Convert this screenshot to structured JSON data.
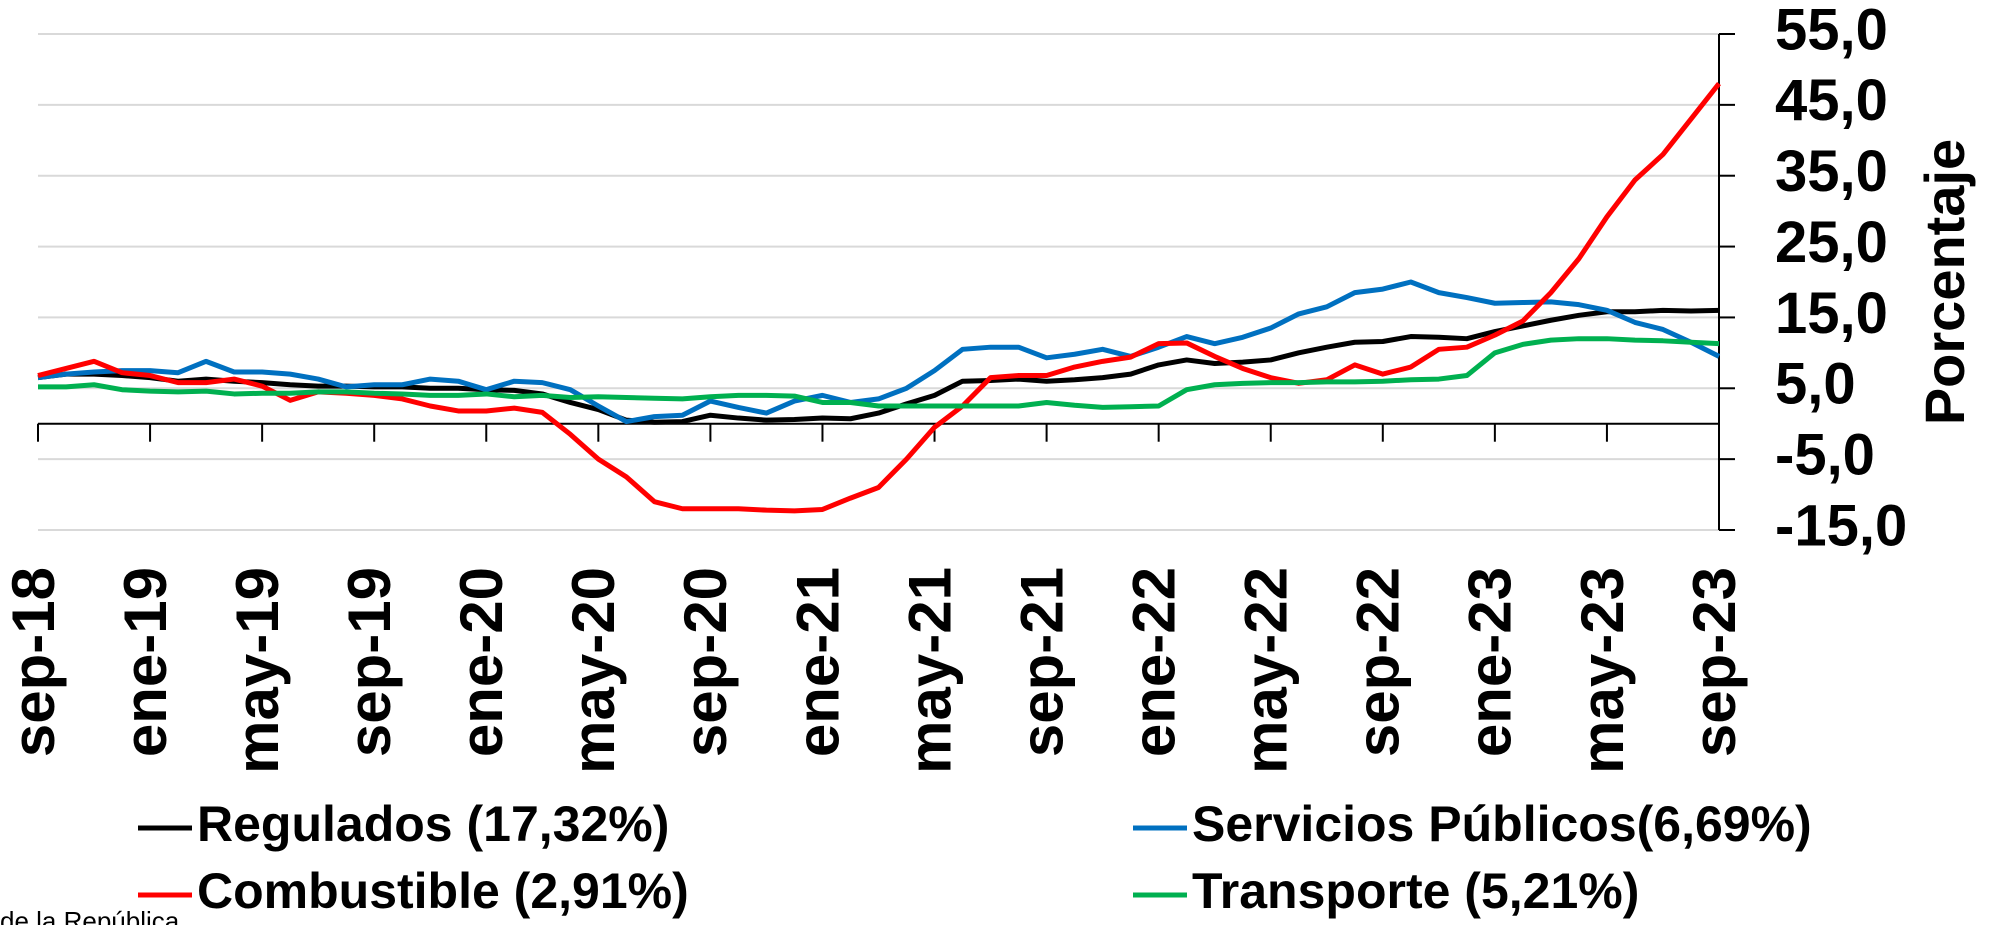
{
  "chart_data": {
    "type": "line",
    "y_axis_label": "Porcentaje",
    "source": "de la República",
    "categories": [
      "sep-18",
      null,
      null,
      null,
      "ene-19",
      null,
      null,
      null,
      "may-19",
      null,
      null,
      null,
      "sep-19",
      null,
      null,
      null,
      "ene-20",
      null,
      null,
      null,
      "may-20",
      null,
      null,
      null,
      "sep-20",
      null,
      null,
      null,
      "ene-21",
      null,
      null,
      null,
      "may-21",
      null,
      null,
      null,
      "sep-21",
      null,
      null,
      null,
      "ene-22",
      null,
      null,
      null,
      "may-22",
      null,
      null,
      null,
      "sep-22",
      null,
      null,
      null,
      "ene-23",
      null,
      null,
      null,
      "may-23",
      null,
      null,
      null,
      "sep-23"
    ],
    "ylim": [
      -15,
      55
    ],
    "yticks": [
      {
        "value": 55,
        "label": "55,0"
      },
      {
        "value": 45,
        "label": "45,0"
      },
      {
        "value": 35,
        "label": "35,0"
      },
      {
        "value": 25,
        "label": "25,0"
      },
      {
        "value": 15,
        "label": "15,0"
      },
      {
        "value": 5,
        "label": "5,0"
      },
      {
        "value": -5,
        "label": "-5,0"
      },
      {
        "value": -15,
        "label": "-15,0"
      }
    ],
    "grid": true,
    "series": [
      {
        "name": "Regulados (17,32%)",
        "color": "#000000",
        "values": [
          6.5,
          7.0,
          7.0,
          6.8,
          6.5,
          6.0,
          6.3,
          6.0,
          5.8,
          5.5,
          5.3,
          5.3,
          5.2,
          5.2,
          5.0,
          5.0,
          4.8,
          4.7,
          4.2,
          3.0,
          2.0,
          0.5,
          0.2,
          0.3,
          1.2,
          0.8,
          0.5,
          0.6,
          0.8,
          0.7,
          1.5,
          2.8,
          4.0,
          6.0,
          6.1,
          6.3,
          6.0,
          6.2,
          6.5,
          7.0,
          8.3,
          9.0,
          8.5,
          8.7,
          9.0,
          10.0,
          10.8,
          11.5,
          11.6,
          12.3,
          12.2,
          12.0,
          13.0,
          13.8,
          14.6,
          15.3,
          15.8,
          15.8,
          16.0,
          15.9,
          16.0
        ]
      },
      {
        "name": "Servicios Públicos(6,69%)",
        "color": "#0070c0",
        "values": [
          6.5,
          7.0,
          7.3,
          7.5,
          7.5,
          7.2,
          8.8,
          7.3,
          7.3,
          7.0,
          6.3,
          5.2,
          5.5,
          5.5,
          6.3,
          6.0,
          4.8,
          6.0,
          5.8,
          4.8,
          2.5,
          0.3,
          1.0,
          1.2,
          3.2,
          2.3,
          1.5,
          3.2,
          4.0,
          3.0,
          3.5,
          5.0,
          7.5,
          10.5,
          10.8,
          10.8,
          9.3,
          9.8,
          10.5,
          9.5,
          10.8,
          12.3,
          11.3,
          12.2,
          13.5,
          15.5,
          16.5,
          18.5,
          19.0,
          20.0,
          18.5,
          17.8,
          17.0,
          17.1,
          17.2,
          16.8,
          16.0,
          14.3,
          13.3,
          11.5,
          9.5
        ]
      },
      {
        "name": "Combustible (2,91%)",
        "color": "#ff0000",
        "values": [
          6.8,
          7.8,
          8.8,
          7.2,
          6.8,
          5.8,
          5.8,
          6.3,
          5.3,
          3.3,
          4.5,
          4.3,
          4.0,
          3.5,
          2.5,
          1.8,
          1.8,
          2.2,
          1.6,
          -1.5,
          -5.0,
          -7.5,
          -11.0,
          -12.0,
          -12.0,
          -12.0,
          -12.2,
          -12.3,
          -12.1,
          -10.5,
          -9.0,
          -5.0,
          -0.5,
          2.5,
          6.5,
          6.8,
          6.8,
          8.0,
          8.8,
          9.4,
          11.3,
          11.4,
          9.5,
          7.8,
          6.5,
          5.7,
          6.2,
          8.3,
          7.0,
          8.0,
          10.5,
          10.8,
          12.5,
          14.5,
          18.5,
          23.3,
          29.2,
          34.4,
          38.0,
          43.0,
          48.0
        ]
      },
      {
        "name": "Transporte (5,21%)",
        "color": "#00b050",
        "values": [
          5.2,
          5.2,
          5.5,
          4.8,
          4.6,
          4.5,
          4.6,
          4.2,
          4.3,
          4.3,
          4.5,
          4.5,
          4.3,
          4.2,
          4.0,
          4.0,
          4.2,
          3.8,
          4.0,
          3.7,
          3.8,
          3.7,
          3.6,
          3.5,
          3.8,
          4.0,
          4.0,
          3.9,
          3.0,
          3.0,
          2.5,
          2.5,
          2.5,
          2.5,
          2.5,
          2.5,
          3.0,
          2.6,
          2.3,
          2.4,
          2.5,
          4.8,
          5.5,
          5.7,
          5.8,
          5.8,
          5.9,
          5.9,
          6.0,
          6.2,
          6.3,
          6.8,
          10.0,
          11.2,
          11.8,
          12.0,
          12.0,
          11.8,
          11.7,
          11.5,
          11.3
        ]
      }
    ]
  }
}
